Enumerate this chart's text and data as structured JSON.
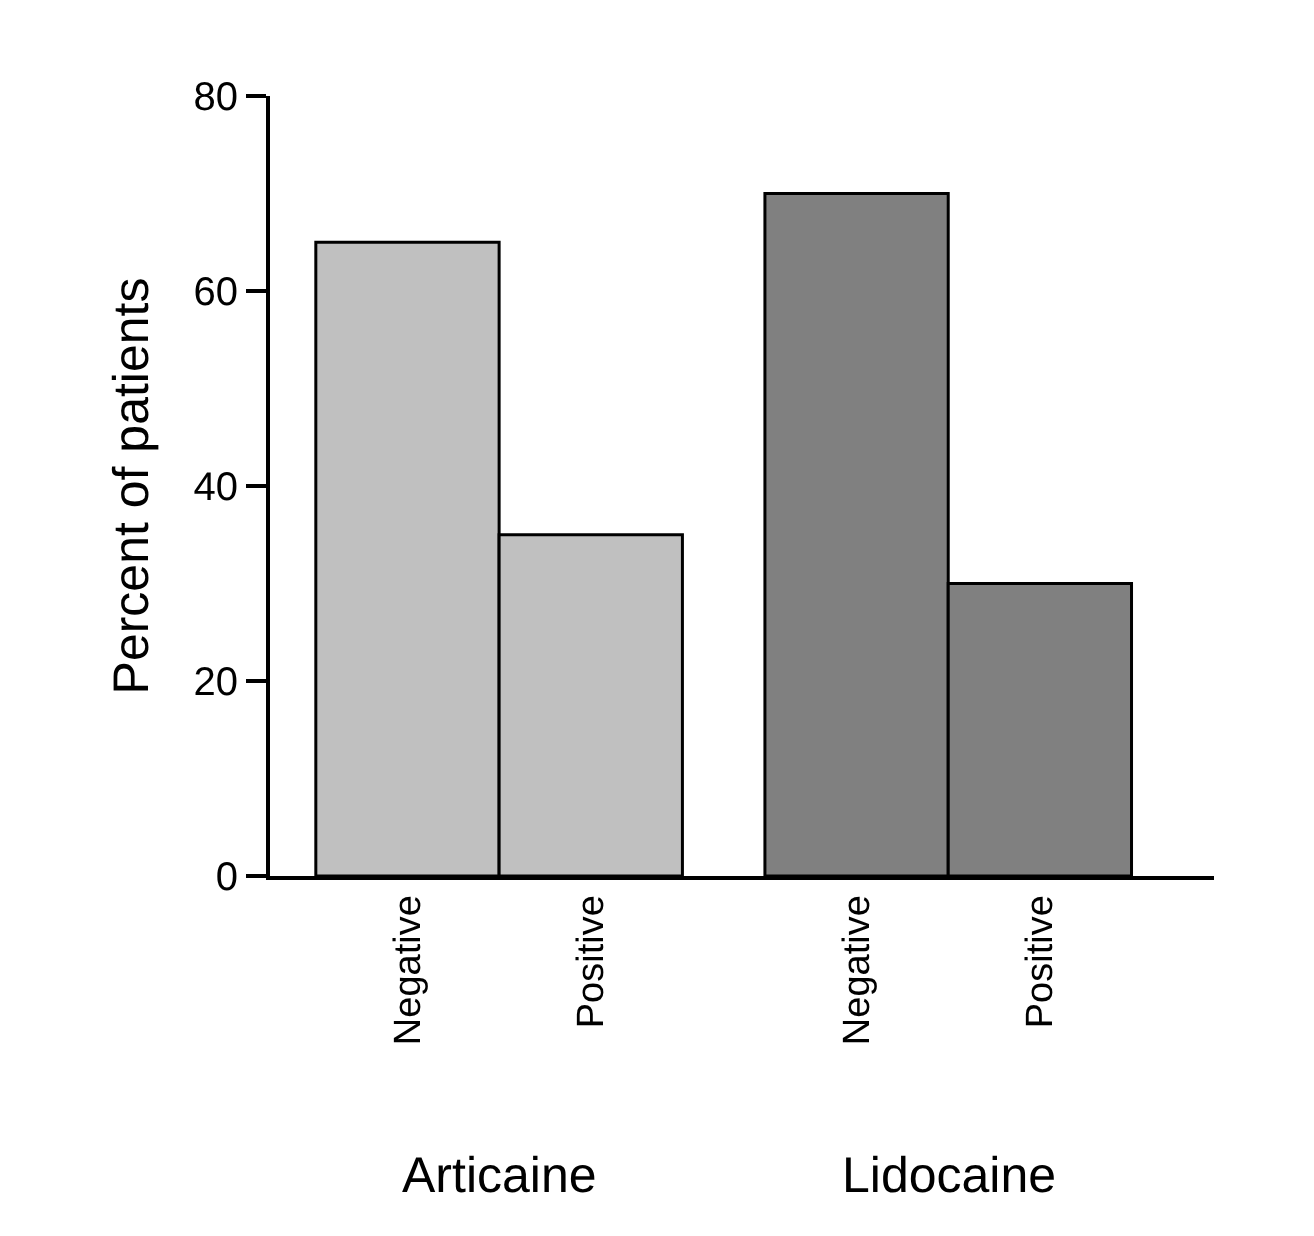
{
  "chart_data": {
    "type": "bar",
    "ylabel": "Percent of patients",
    "categories": [
      "Negative",
      "Positive",
      "Negative",
      "Positive"
    ],
    "values": [
      65,
      35,
      70,
      30
    ],
    "colors": [
      "#c0c0c0",
      "#c0c0c0",
      "#808080",
      "#808080"
    ],
    "ylim": [
      0,
      80
    ],
    "yticks": [
      0,
      20,
      40,
      60,
      80
    ],
    "grid": false,
    "annotations": [
      "Articaine",
      "Lidocaine"
    ]
  }
}
